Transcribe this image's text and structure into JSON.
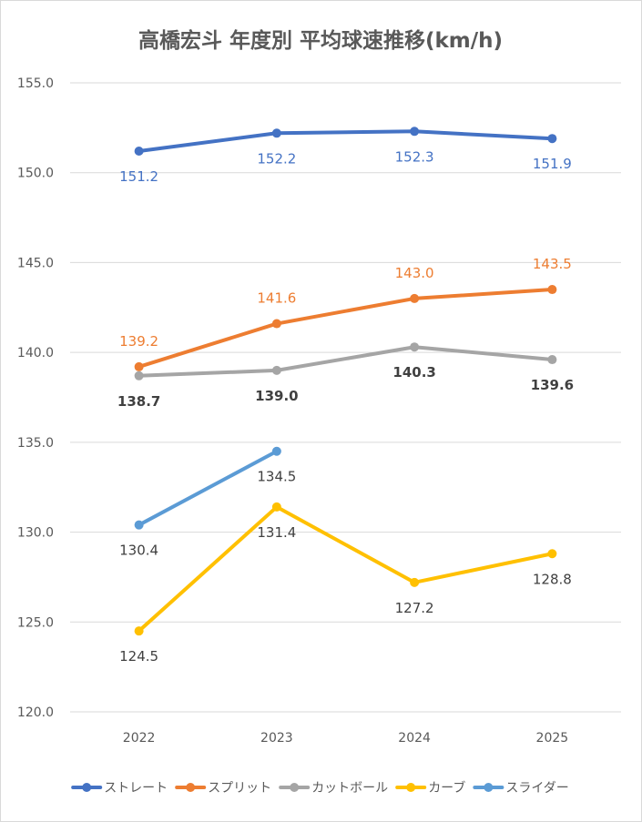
{
  "chart_data": {
    "type": "line",
    "title": "高橋宏斗 年度別 平均球速推移(km/h)",
    "xlabel": "",
    "ylabel": "",
    "x": [
      "2022",
      "2023",
      "2024",
      "2025"
    ],
    "ylim": [
      120.0,
      155.0
    ],
    "yticks": [
      "120.0",
      "125.0",
      "130.0",
      "135.0",
      "140.0",
      "145.0",
      "150.0",
      "155.0"
    ],
    "grid": true,
    "legend": "bottom",
    "series": [
      {
        "name": "ストレート",
        "color": "#4472c4",
        "labelColor": "#4472c4",
        "labelPos": "below",
        "values": [
          151.2,
          152.2,
          152.3,
          151.9
        ]
      },
      {
        "name": "スプリット",
        "color": "#ed7d31",
        "labelColor": "#ed7d31",
        "labelPos": "above",
        "values": [
          139.2,
          141.6,
          143.0,
          143.5
        ]
      },
      {
        "name": "カットボール",
        "color": "#a5a5a5",
        "labelColor": "#404040",
        "labelPos": "below",
        "labelBold": true,
        "values": [
          138.7,
          139.0,
          140.3,
          139.6
        ]
      },
      {
        "name": "カーブ",
        "color": "#ffc000",
        "labelColor": "#404040",
        "labelPos": "below",
        "values": [
          124.5,
          131.4,
          127.2,
          128.8
        ]
      },
      {
        "name": "スライダー",
        "color": "#5b9bd5",
        "labelColor": "#404040",
        "labelPos": "below",
        "values": [
          130.4,
          134.5,
          null,
          null
        ]
      }
    ]
  }
}
